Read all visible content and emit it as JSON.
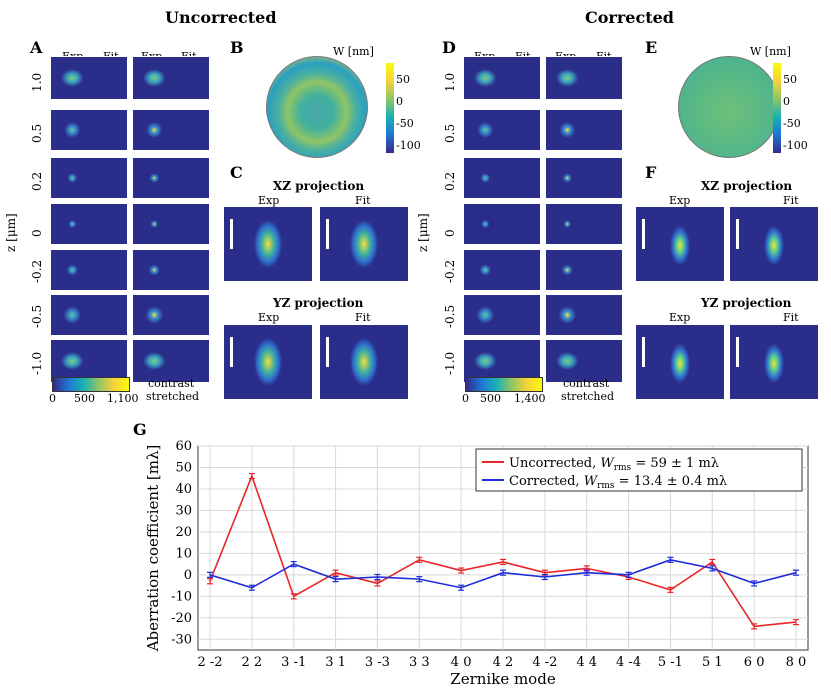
{
  "headings": {
    "uncorrected": "Uncorrected",
    "corrected": "Corrected"
  },
  "panels": {
    "A": "A",
    "B": "B",
    "C": "C",
    "D": "D",
    "E": "E",
    "F": "F",
    "G": "G"
  },
  "tile_cols": {
    "exp": "Exp",
    "fit": "Fit"
  },
  "z_rows": [
    "1.0",
    "0.5",
    "0.2",
    "0",
    "-0.2",
    "-0.5",
    "-1.0"
  ],
  "z_axis_label": "z [μm]",
  "colorbar_left": {
    "min": "0",
    "mid": "500",
    "max": "1,100"
  },
  "colorbar_right": {
    "min": "0",
    "mid": "500",
    "max": "1,400"
  },
  "contrast_note": [
    "contrast",
    "stretched"
  ],
  "wavefront_bar": {
    "title": "W [nm]",
    "ticks": [
      "50",
      "0",
      "-50",
      "-100"
    ]
  },
  "projections": {
    "xz": "XZ projection",
    "yz": "YZ projection",
    "exp": "Exp",
    "fit": "Fit"
  },
  "chart_data": {
    "type": "line",
    "xlabel": "Zernike mode",
    "ylabel": "Aberration coefficient [mλ]",
    "categories": [
      "2 -2",
      "2 2",
      "3 -1",
      "3 1",
      "3 -3",
      "3 3",
      "4 0",
      "4 2",
      "4 -2",
      "4 4",
      "4 -4",
      "5 -1",
      "5 1",
      "6 0",
      "8 0"
    ],
    "ylim": [
      -35,
      60
    ],
    "yticks": [
      -30,
      -20,
      -10,
      0,
      10,
      20,
      30,
      40,
      50,
      60
    ],
    "grid": true,
    "legend_position": "top-right",
    "series": [
      {
        "name": "Uncorrected, W_rms = 59 ± 1 mλ",
        "color": "#e8262a",
        "values": [
          -3,
          46,
          -10,
          1,
          -4,
          7,
          2,
          6,
          1,
          3,
          -1,
          -7,
          6,
          -24,
          -22
        ]
      },
      {
        "name": "Corrected, W_rms = 13.4 ± 0.4 mλ",
        "color": "#1f2bd6",
        "values": [
          0,
          -6,
          5,
          -2,
          -1,
          -2,
          -6,
          1,
          -1,
          1,
          0,
          7,
          3,
          -4,
          1
        ]
      }
    ],
    "legend_prefix": [
      "Uncorrected, ",
      "Corrected, "
    ],
    "legend_suffix": [
      " = 59 ± 1 mλ",
      " = 13.4 ± 0.4 mλ"
    ]
  }
}
